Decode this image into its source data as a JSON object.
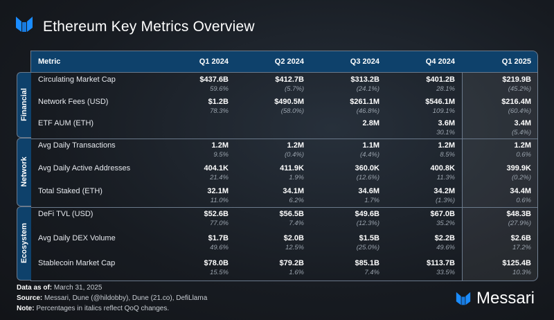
{
  "title": "Ethereum Key Metrics Overview",
  "brand": "Messari",
  "colors": {
    "accent": "#1a8cff",
    "header": "#0e416b"
  },
  "chart_data": {
    "type": "table",
    "columns": [
      "Metric",
      "Q1 2024",
      "Q2 2024",
      "Q3 2024",
      "Q4 2024",
      "Q1 2025"
    ],
    "groups": [
      {
        "name": "Financial",
        "rows": [
          {
            "metric": "Circulating Market Cap",
            "values": [
              "$437.6B",
              "$412.7B",
              "$313.2B",
              "$401.2B",
              "$219.9B"
            ],
            "changes": [
              "59.6%",
              "(5.7%)",
              "(24.1%)",
              "28.1%",
              "(45.2%)"
            ]
          },
          {
            "metric": "Network Fees (USD)",
            "values": [
              "$1.2B",
              "$490.5M",
              "$261.1M",
              "$546.1M",
              "$216.4M"
            ],
            "changes": [
              "78.3%",
              "(58.0%)",
              "(46.8%)",
              "109.1%",
              "(60.4%)"
            ]
          },
          {
            "metric": "ETF AUM (ETH)",
            "values": [
              "",
              "",
              "2.8M",
              "3.6M",
              "3.4M"
            ],
            "changes": [
              "",
              "",
              "",
              "30.1%",
              "(5.4%)"
            ]
          }
        ]
      },
      {
        "name": "Network",
        "rows": [
          {
            "metric": "Avg Daily Transactions",
            "values": [
              "1.2M",
              "1.2M",
              "1.1M",
              "1.2M",
              "1.2M"
            ],
            "changes": [
              "9.5%",
              "(0.4%)",
              "(4.4%)",
              "8.5%",
              "0.6%"
            ]
          },
          {
            "metric": "Avg Daily Active Addresses",
            "values": [
              "404.1K",
              "411.9K",
              "360.0K",
              "400.8K",
              "399.9K"
            ],
            "changes": [
              "21.4%",
              "1.9%",
              "(12.6%)",
              "11.3%",
              "(0.2%)"
            ]
          },
          {
            "metric": "Total Staked (ETH)",
            "values": [
              "32.1M",
              "34.1M",
              "34.6M",
              "34.2M",
              "34.4M"
            ],
            "changes": [
              "11.0%",
              "6.2%",
              "1.7%",
              "(1.3%)",
              "0.6%"
            ]
          }
        ]
      },
      {
        "name": "Ecosystem",
        "rows": [
          {
            "metric": "DeFi TVL (USD)",
            "values": [
              "$52.6B",
              "$56.5B",
              "$49.6B",
              "$67.0B",
              "$48.3B"
            ],
            "changes": [
              "77.0%",
              "7.4%",
              "(12.3%)",
              "35.2%",
              "(27.9%)"
            ]
          },
          {
            "metric": "Avg Daily DEX Volume",
            "values": [
              "$1.7B",
              "$2.0B",
              "$1.5B",
              "$2.2B",
              "$2.6B"
            ],
            "changes": [
              "49.6%",
              "12.5%",
              "(25.0%)",
              "49.6%",
              "17.2%"
            ]
          },
          {
            "metric": "Stablecoin Market Cap",
            "values": [
              "$78.0B",
              "$79.2B",
              "$85.1B",
              "$113.7B",
              "$125.4B"
            ],
            "changes": [
              "15.5%",
              "1.6%",
              "7.4%",
              "33.5%",
              "10.3%"
            ]
          }
        ]
      }
    ]
  },
  "footer": {
    "date_label": "Data as of:",
    "date": "March 31, 2025",
    "source_label": "Source:",
    "source": "Messari, Dune (@hildobby), Dune (21.co), DefiLlama",
    "note_label": "Note:",
    "note": "Percentages in italics reflect QoQ changes."
  }
}
